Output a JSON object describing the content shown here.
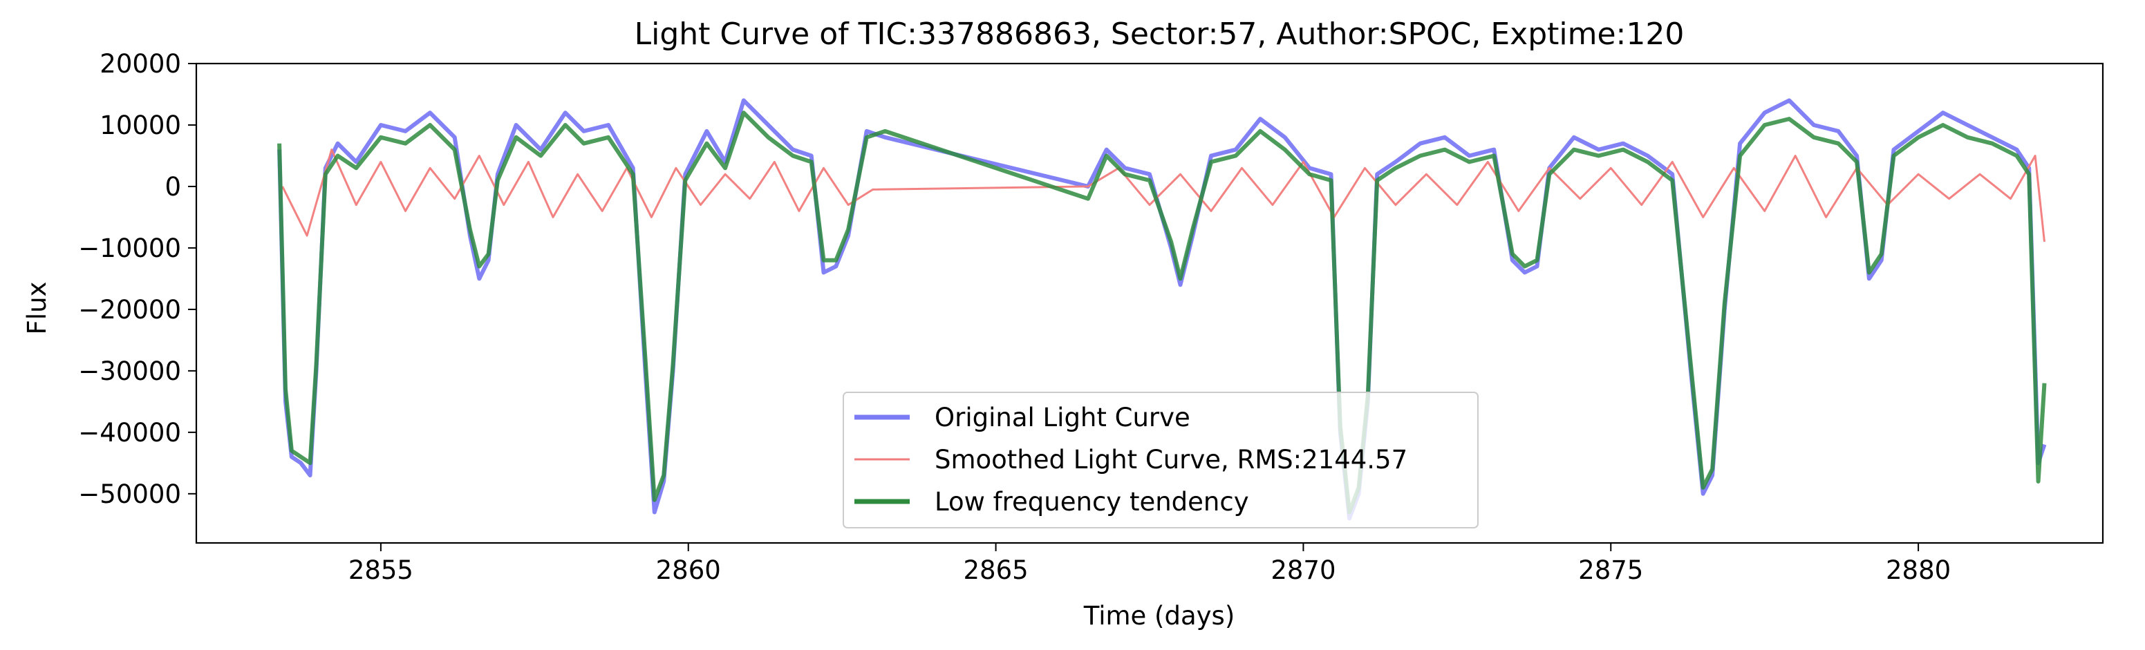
{
  "chart_data": {
    "type": "line",
    "title": "Light Curve of TIC:337886863, Sector:57, Author:SPOC, Exptime:120",
    "xlabel": "Time (days)",
    "ylabel": "Flux",
    "xlim": [
      2852.0,
      2883.0
    ],
    "ylim": [
      -58000,
      20000
    ],
    "xticks": [
      2855,
      2860,
      2865,
      2870,
      2875,
      2880
    ],
    "xtick_labels": [
      "2855",
      "2860",
      "2865",
      "2870",
      "2875",
      "2880"
    ],
    "yticks": [
      20000,
      10000,
      0,
      -10000,
      -20000,
      -30000,
      -40000,
      -50000
    ],
    "ytick_labels": [
      "20000",
      "10000",
      "0",
      "−10000",
      "−20000",
      "−30000",
      "−40000",
      "−50000"
    ],
    "grid": false,
    "legend_position": "lower-center",
    "series": [
      {
        "name": "Original Light Curve",
        "color": "#7b7bf5",
        "x": [
          2853.35,
          2853.45,
          2853.55,
          2853.7,
          2853.85,
          2853.95,
          2854.1,
          2854.3,
          2854.6,
          2855.0,
          2855.4,
          2855.8,
          2856.2,
          2856.45,
          2856.6,
          2856.75,
          2856.9,
          2857.2,
          2857.6,
          2858.0,
          2858.3,
          2858.7,
          2859.1,
          2859.3,
          2859.45,
          2859.6,
          2859.75,
          2859.95,
          2860.3,
          2860.6,
          2860.9,
          2861.3,
          2861.7,
          2862.0,
          2862.2,
          2862.4,
          2862.6,
          2862.9,
          2863.2,
          2866.5,
          2866.8,
          2867.1,
          2867.5,
          2867.85,
          2868.0,
          2868.2,
          2868.5,
          2868.9,
          2869.3,
          2869.7,
          2870.1,
          2870.45,
          2870.6,
          2870.75,
          2870.9,
          2871.05,
          2871.2,
          2871.5,
          2871.9,
          2872.3,
          2872.7,
          2873.1,
          2873.4,
          2873.6,
          2873.8,
          2874.0,
          2874.4,
          2874.8,
          2875.2,
          2875.6,
          2876.0,
          2876.3,
          2876.5,
          2876.65,
          2876.85,
          2877.1,
          2877.5,
          2877.9,
          2878.3,
          2878.7,
          2879.0,
          2879.2,
          2879.4,
          2879.6,
          2880.0,
          2880.4,
          2880.8,
          2881.2,
          2881.6,
          2881.8,
          2881.95,
          2882.05
        ],
        "y": [
          6000,
          -35000,
          -44000,
          -45000,
          -47000,
          -30000,
          3000,
          7000,
          4000,
          10000,
          9000,
          12000,
          8000,
          -8000,
          -15000,
          -12000,
          2000,
          10000,
          6000,
          12000,
          9000,
          10000,
          3000,
          -30000,
          -53000,
          -48000,
          -30000,
          2000,
          9000,
          4000,
          14000,
          10000,
          6000,
          5000,
          -14000,
          -13000,
          -8000,
          9000,
          8000,
          0,
          6000,
          3000,
          2000,
          -10000,
          -16000,
          -8000,
          5000,
          6000,
          11000,
          8000,
          3000,
          2000,
          -40000,
          -54000,
          -50000,
          -35000,
          2000,
          4000,
          7000,
          8000,
          5000,
          6000,
          -12000,
          -14000,
          -13000,
          3000,
          8000,
          6000,
          7000,
          5000,
          2000,
          -30000,
          -50000,
          -47000,
          -20000,
          7000,
          12000,
          14000,
          10000,
          9000,
          5000,
          -15000,
          -12000,
          6000,
          9000,
          12000,
          10000,
          8000,
          6000,
          3000,
          -45000,
          -42000
        ]
      },
      {
        "name": "Smoothed Light Curve, RMS:2144.57",
        "color": "#f27b7b",
        "x": [
          2853.4,
          2853.8,
          2854.2,
          2854.6,
          2855.0,
          2855.4,
          2855.8,
          2856.2,
          2856.6,
          2857.0,
          2857.4,
          2857.8,
          2858.2,
          2858.6,
          2859.0,
          2859.4,
          2859.8,
          2860.2,
          2860.6,
          2861.0,
          2861.4,
          2861.8,
          2862.2,
          2862.6,
          2863.0,
          2866.5,
          2867.0,
          2867.5,
          2868.0,
          2868.5,
          2869.0,
          2869.5,
          2870.0,
          2870.5,
          2871.0,
          2871.5,
          2872.0,
          2872.5,
          2873.0,
          2873.5,
          2874.0,
          2874.5,
          2875.0,
          2875.5,
          2876.0,
          2876.5,
          2877.0,
          2877.5,
          2878.0,
          2878.5,
          2879.0,
          2879.5,
          2880.0,
          2880.5,
          2881.0,
          2881.5,
          2881.9,
          2882.05
        ],
        "y": [
          0,
          -8000,
          6000,
          -3000,
          4000,
          -4000,
          3000,
          -2000,
          5000,
          -3000,
          4000,
          -5000,
          2000,
          -4000,
          3000,
          -5000,
          3000,
          -3000,
          2000,
          -2000,
          4000,
          -4000,
          3000,
          -3000,
          -500,
          0,
          3000,
          -3000,
          2000,
          -4000,
          3000,
          -3000,
          4000,
          -5000,
          3000,
          -3000,
          2000,
          -3000,
          4000,
          -4000,
          3000,
          -2000,
          3000,
          -3000,
          4000,
          -5000,
          3000,
          -4000,
          5000,
          -5000,
          3000,
          -3000,
          2000,
          -2000,
          2000,
          -2000,
          5000,
          -9000
        ]
      },
      {
        "name": "Low frequency tendency",
        "color": "#2e8b3e",
        "x": [
          2853.35,
          2853.45,
          2853.55,
          2853.7,
          2853.85,
          2853.95,
          2854.1,
          2854.3,
          2854.6,
          2855.0,
          2855.4,
          2855.8,
          2856.2,
          2856.45,
          2856.6,
          2856.75,
          2856.9,
          2857.2,
          2857.6,
          2858.0,
          2858.3,
          2858.7,
          2859.1,
          2859.3,
          2859.45,
          2859.6,
          2859.75,
          2859.95,
          2860.3,
          2860.6,
          2860.9,
          2861.3,
          2861.7,
          2862.0,
          2862.2,
          2862.4,
          2862.6,
          2862.9,
          2863.2,
          2866.5,
          2866.8,
          2867.1,
          2867.5,
          2867.85,
          2868.0,
          2868.2,
          2868.5,
          2868.9,
          2869.3,
          2869.7,
          2870.1,
          2870.45,
          2870.6,
          2870.75,
          2870.9,
          2871.05,
          2871.2,
          2871.5,
          2871.9,
          2872.3,
          2872.7,
          2873.1,
          2873.4,
          2873.6,
          2873.8,
          2874.0,
          2874.4,
          2874.8,
          2875.2,
          2875.6,
          2876.0,
          2876.3,
          2876.5,
          2876.65,
          2876.85,
          2877.1,
          2877.5,
          2877.9,
          2878.3,
          2878.7,
          2879.0,
          2879.2,
          2879.4,
          2879.6,
          2880.0,
          2880.4,
          2880.8,
          2881.2,
          2881.6,
          2881.8,
          2881.95,
          2882.05
        ],
        "y": [
          7000,
          -33000,
          -43000,
          -44000,
          -45000,
          -29000,
          2000,
          5000,
          3000,
          8000,
          7000,
          10000,
          6000,
          -7000,
          -13000,
          -11000,
          1000,
          8000,
          5000,
          10000,
          7000,
          8000,
          2000,
          -28000,
          -51000,
          -47000,
          -29000,
          1000,
          7000,
          3000,
          12000,
          8000,
          5000,
          4000,
          -12000,
          -12000,
          -7000,
          8000,
          9000,
          -2000,
          5000,
          2000,
          1000,
          -9000,
          -15000,
          -7000,
          4000,
          5000,
          9000,
          6000,
          2000,
          1000,
          -39000,
          -53000,
          -49000,
          -34000,
          1000,
          3000,
          5000,
          6000,
          4000,
          5000,
          -11000,
          -13000,
          -12000,
          2000,
          6000,
          5000,
          6000,
          4000,
          1000,
          -29000,
          -49000,
          -46000,
          -19000,
          5000,
          10000,
          11000,
          8000,
          7000,
          4000,
          -14000,
          -11000,
          5000,
          8000,
          10000,
          8000,
          7000,
          5000,
          2000,
          -48000,
          -32000
        ]
      }
    ]
  }
}
